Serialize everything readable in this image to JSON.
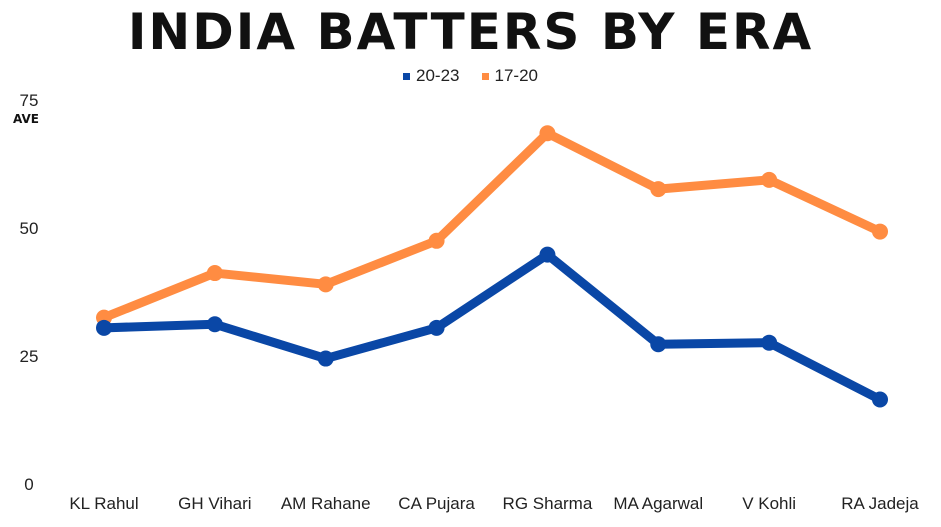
{
  "chart_data": {
    "type": "line",
    "title": "INDIA BATTERS BY ERA",
    "ylabel": "AVE",
    "xlabel": "",
    "ylim": [
      0,
      75
    ],
    "yticks": [
      0,
      25,
      50,
      75
    ],
    "legend_position": "top-center",
    "categories": [
      "KL Rahul",
      "GH Vihari",
      "AM Rahane",
      "CA Pujara",
      "RG Sharma",
      "MA Agarwal",
      "V Kohli",
      "RA Jadeja"
    ],
    "series": [
      {
        "name": "20-23",
        "color": "#0A47A6",
        "values": [
          30.5,
          31.2,
          24.5,
          30.5,
          44.8,
          27.3,
          27.6,
          16.5
        ]
      },
      {
        "name": "17-20",
        "color": "#FF8C42",
        "values": [
          32.5,
          41.2,
          39.0,
          47.5,
          68.5,
          57.6,
          59.4,
          49.3
        ]
      }
    ]
  }
}
